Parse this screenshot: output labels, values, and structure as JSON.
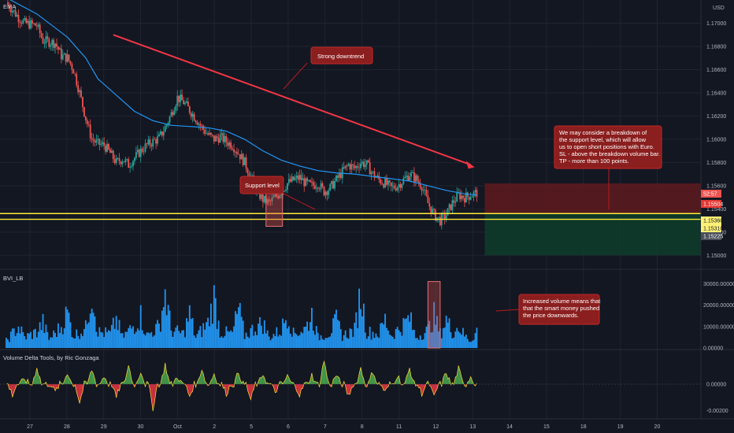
{
  "symbol_label": "EMA",
  "currency_label": "USD",
  "panes": {
    "volume_indicator": "BVI_LB",
    "delta_indicator": "Volume Delta Tools, by Ric Gonzaga"
  },
  "annotations": {
    "downtrend": "Strong downtrend",
    "support": "Support level",
    "trade_plan": [
      "We may consider a breakdown of",
      "the support level, which will allow",
      "us to open short positions with Euro.",
      "SL - above the breakdown volume bar.",
      "TP - more than 100 points."
    ],
    "volume_note": [
      "Increased volume means that",
      "that the smart money pushed",
      "the price downwards."
    ]
  },
  "price_tags": [
    {
      "label": "52:57",
      "color": "#ef5350",
      "text_color": "#ffffff"
    },
    {
      "label": "1.15504",
      "color": "#e53935",
      "text_color": "#ffffff"
    },
    {
      "label": "1.15360",
      "color": "#fff176",
      "text_color": "#131722"
    },
    {
      "label": "1.15310",
      "color": "#fff176",
      "text_color": "#131722"
    },
    {
      "label": "1.15225",
      "color": "#4a4e59",
      "text_color": "#ffffff"
    }
  ],
  "colors": {
    "background": "#131722",
    "grid": "#1f2430",
    "candle_up": "#26a69a",
    "candle_down": "#ef5350",
    "ema": "#2196f3",
    "trendline": "#f23645",
    "support_lines": "#ffeb3b",
    "volume_bars": "#2196f3",
    "delta_positive": "#4caf50",
    "delta_negative": "#f23645",
    "note_fill": "#8b1e1e",
    "stop_zone": "#5e1a1d",
    "target_zone": "#0f3d2a"
  },
  "chart_data": [
    {
      "type": "candlestick",
      "pane": "price",
      "yaxis_ticks": [
        "1.17000",
        "1.16800",
        "1.16600",
        "1.16400",
        "1.16200",
        "1.16000",
        "1.15800",
        "1.15600",
        "1.15400",
        "1.15200",
        "1.15000"
      ],
      "ylim": [
        1.1488,
        1.172
      ],
      "x_ticks": [
        "27",
        "28",
        "29",
        "30",
        "Oct",
        "2",
        "5",
        "6",
        "7",
        "8",
        "11",
        "12",
        "13",
        "14",
        "15",
        "18",
        "19",
        "20"
      ],
      "close_path": [
        [
          0,
          1.1718
        ],
        [
          2,
          1.1705
        ],
        [
          3,
          1.17
        ],
        [
          5,
          1.1698
        ],
        [
          6,
          1.1685
        ],
        [
          8,
          1.1683
        ],
        [
          9,
          1.1672
        ],
        [
          10,
          1.167
        ],
        [
          11,
          1.166
        ],
        [
          12,
          1.164
        ],
        [
          13,
          1.1618
        ],
        [
          14,
          1.16
        ],
        [
          15,
          1.1596
        ],
        [
          16,
          1.1595
        ],
        [
          17,
          1.1588
        ],
        [
          18,
          1.158
        ],
        [
          19,
          1.1583
        ],
        [
          20,
          1.1578
        ],
        [
          21,
          1.1584
        ],
        [
          22,
          1.159
        ],
        [
          23,
          1.1595
        ],
        [
          24,
          1.1598
        ],
        [
          25,
          1.1601
        ],
        [
          26,
          1.161
        ],
        [
          27,
          1.1622
        ],
        [
          28,
          1.1636
        ],
        [
          29,
          1.1632
        ],
        [
          30,
          1.1625
        ],
        [
          31,
          1.1618
        ],
        [
          32,
          1.161
        ],
        [
          33,
          1.1604
        ],
        [
          34,
          1.16
        ],
        [
          35,
          1.1602
        ],
        [
          36,
          1.1598
        ],
        [
          37,
          1.1595
        ],
        [
          38,
          1.1588
        ],
        [
          39,
          1.158
        ],
        [
          40,
          1.1568
        ],
        [
          41,
          1.1555
        ],
        [
          42,
          1.1548
        ],
        [
          43,
          1.1545
        ],
        [
          44,
          1.155
        ],
        [
          45,
          1.1555
        ],
        [
          46,
          1.1562
        ],
        [
          47,
          1.1565
        ],
        [
          48,
          1.1567
        ],
        [
          49,
          1.1562
        ],
        [
          50,
          1.156
        ],
        [
          51,
          1.1562
        ],
        [
          52,
          1.1555
        ],
        [
          53,
          1.1558
        ],
        [
          54,
          1.1565
        ],
        [
          55,
          1.1572
        ],
        [
          56,
          1.1578
        ],
        [
          57,
          1.1575
        ],
        [
          58,
          1.158
        ],
        [
          59,
          1.1578
        ],
        [
          60,
          1.157
        ],
        [
          61,
          1.1565
        ],
        [
          62,
          1.1562
        ],
        [
          63,
          1.1558
        ],
        [
          64,
          1.156
        ],
        [
          65,
          1.1565
        ],
        [
          66,
          1.157
        ],
        [
          67,
          1.1566
        ],
        [
          68,
          1.156
        ],
        [
          69,
          1.1545
        ],
        [
          70,
          1.1535
        ],
        [
          71,
          1.153
        ],
        [
          72,
          1.1535
        ],
        [
          73,
          1.1545
        ],
        [
          74,
          1.1552
        ],
        [
          75,
          1.155
        ],
        [
          76,
          1.1552
        ],
        [
          77,
          1.1554
        ]
      ],
      "x_range": [
        0,
        112
      ],
      "ema_path": [
        [
          0,
          1.1722
        ],
        [
          5,
          1.1708
        ],
        [
          10,
          1.1688
        ],
        [
          13,
          1.167
        ],
        [
          15,
          1.1652
        ],
        [
          18,
          1.1638
        ],
        [
          21,
          1.1624
        ],
        [
          24,
          1.1616
        ],
        [
          27,
          1.1612
        ],
        [
          30,
          1.1611
        ],
        [
          33,
          1.161
        ],
        [
          36,
          1.1607
        ],
        [
          39,
          1.16
        ],
        [
          42,
          1.159
        ],
        [
          45,
          1.1582
        ],
        [
          48,
          1.1577
        ],
        [
          51,
          1.1573
        ],
        [
          54,
          1.1571
        ],
        [
          57,
          1.157
        ],
        [
          60,
          1.1568
        ],
        [
          63,
          1.1566
        ],
        [
          66,
          1.1564
        ],
        [
          69,
          1.156
        ],
        [
          72,
          1.1556
        ],
        [
          75,
          1.1553
        ],
        [
          77,
          1.1552
        ]
      ],
      "ema_name": "",
      "support_levels": [
        1.1536,
        1.1531
      ],
      "trendline": {
        "from": [
          17.5,
          1.169
        ],
        "to": [
          76,
          1.1578
        ]
      },
      "trade_zone": {
        "entry": 1.1536,
        "stop": 1.1562,
        "target": 1.15
      },
      "current_price": 1.15504
    },
    {
      "type": "bar",
      "pane": "BVI_LB",
      "yaxis_ticks": [
        "30000.00000",
        "20000.00000",
        "10000.00000",
        "0.00000"
      ],
      "ylim": [
        0,
        36000
      ],
      "profile": [
        [
          0,
          4000
        ],
        [
          2,
          12000
        ],
        [
          3,
          6000
        ],
        [
          5,
          9000
        ],
        [
          6,
          14000
        ],
        [
          7,
          5000
        ],
        [
          9,
          12000
        ],
        [
          10,
          20000
        ],
        [
          11,
          7000
        ],
        [
          13,
          11000
        ],
        [
          14,
          34000
        ],
        [
          15,
          9000
        ],
        [
          17,
          8000
        ],
        [
          18,
          16000
        ],
        [
          19,
          6000
        ],
        [
          21,
          13000
        ],
        [
          22,
          18000
        ],
        [
          23,
          7000
        ],
        [
          25,
          12000
        ],
        [
          26,
          31000
        ],
        [
          27,
          10000
        ],
        [
          29,
          8000
        ],
        [
          30,
          19000
        ],
        [
          31,
          6000
        ],
        [
          33,
          14000
        ],
        [
          34,
          28000
        ],
        [
          35,
          9000
        ],
        [
          37,
          8000
        ],
        [
          38,
          22000
        ],
        [
          39,
          7000
        ],
        [
          41,
          12000
        ],
        [
          42,
          14000
        ],
        [
          43,
          6000
        ],
        [
          45,
          10000
        ],
        [
          46,
          20000
        ],
        [
          47,
          8000
        ],
        [
          49,
          11000
        ],
        [
          50,
          19000
        ],
        [
          51,
          6000
        ],
        [
          53,
          9000
        ],
        [
          54,
          15000
        ],
        [
          55,
          7000
        ],
        [
          57,
          10000
        ],
        [
          58,
          31000
        ],
        [
          59,
          9000
        ],
        [
          61,
          8000
        ],
        [
          62,
          16000
        ],
        [
          63,
          7000
        ],
        [
          65,
          13000
        ],
        [
          66,
          17000
        ],
        [
          67,
          6000
        ],
        [
          69,
          10000
        ],
        [
          70,
          18000
        ],
        [
          71,
          8000
        ],
        [
          72,
          16000
        ],
        [
          73,
          9000
        ],
        [
          74,
          12000
        ],
        [
          75,
          7000
        ],
        [
          76,
          4000
        ],
        [
          77,
          10000
        ]
      ],
      "highlight_x": [
        69,
        71
      ]
    },
    {
      "type": "area",
      "pane": "Volume Delta Tools",
      "yaxis_ticks": [
        "0.00000",
        "-0.00200"
      ],
      "ylim": [
        -0.0025,
        0.0025
      ],
      "spikes": [
        [
          1,
          -0.0008
        ],
        [
          3,
          0.0004
        ],
        [
          5,
          0.0013
        ],
        [
          8,
          -0.0006
        ],
        [
          10,
          0.0009
        ],
        [
          12,
          -0.0014
        ],
        [
          14,
          0.0011
        ],
        [
          16,
          0.0006
        ],
        [
          18,
          -0.001
        ],
        [
          20,
          0.0014
        ],
        [
          22,
          0.001
        ],
        [
          24,
          -0.0018
        ],
        [
          26,
          0.0015
        ],
        [
          28,
          0.0006
        ],
        [
          30,
          -0.0009
        ],
        [
          32,
          0.0012
        ],
        [
          34,
          0.0008
        ],
        [
          36,
          -0.0007
        ],
        [
          38,
          0.0009
        ],
        [
          40,
          -0.0012
        ],
        [
          42,
          0.0008
        ],
        [
          44,
          -0.0006
        ],
        [
          46,
          0.0006
        ],
        [
          48,
          -0.0008
        ],
        [
          50,
          0.0007
        ],
        [
          52,
          0.0018
        ],
        [
          54,
          0.0007
        ],
        [
          56,
          -0.0009
        ],
        [
          58,
          0.0012
        ],
        [
          60,
          0.001
        ],
        [
          62,
          -0.0006
        ],
        [
          64,
          0.0007
        ],
        [
          66,
          0.0012
        ],
        [
          68,
          -0.0007
        ],
        [
          70,
          -0.001
        ],
        [
          72,
          0.0009
        ],
        [
          74,
          0.0012
        ],
        [
          76,
          0.0006
        ]
      ]
    }
  ]
}
